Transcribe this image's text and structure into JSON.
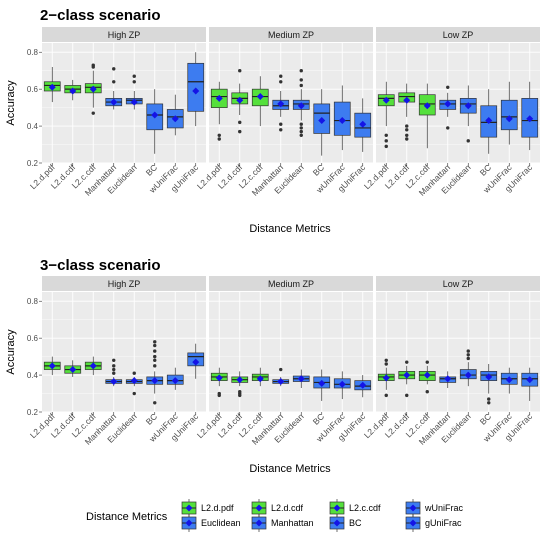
{
  "chart_data": [
    {
      "type": "box",
      "title": "2−class scenario",
      "facets": [
        "High ZP",
        "Medium ZP",
        "Low ZP"
      ],
      "xlabel": "Distance Metrics",
      "ylabel": "Accuracy",
      "ylim": [
        0.2,
        0.85
      ],
      "yticks": [
        0.2,
        0.4,
        0.6,
        0.8
      ],
      "categories": [
        "L2.d.pdf",
        "L2.d.cdf",
        "L2.c.cdf",
        "Manhattan",
        "Euclidean",
        "BC",
        "wUniFrac",
        "gUniFrac"
      ],
      "panels": [
        {
          "facet": "High ZP",
          "boxes": [
            {
              "min": 0.53,
              "q1": 0.59,
              "median": 0.62,
              "q3": 0.64,
              "max": 0.72,
              "mean": 0.61,
              "outliers": []
            },
            {
              "min": 0.54,
              "q1": 0.58,
              "median": 0.6,
              "q3": 0.62,
              "max": 0.65,
              "mean": 0.59,
              "outliers": []
            },
            {
              "min": 0.5,
              "q1": 0.58,
              "median": 0.61,
              "q3": 0.63,
              "max": 0.7,
              "mean": 0.6,
              "outliers": [
                0.47,
                0.72,
                0.73
              ]
            },
            {
              "min": 0.49,
              "q1": 0.51,
              "median": 0.53,
              "q3": 0.55,
              "max": 0.59,
              "mean": 0.53,
              "outliers": [
                0.64,
                0.71
              ]
            },
            {
              "min": 0.49,
              "q1": 0.52,
              "median": 0.54,
              "q3": 0.55,
              "max": 0.59,
              "mean": 0.53,
              "outliers": [
                0.64,
                0.67
              ]
            },
            {
              "min": 0.25,
              "q1": 0.38,
              "median": 0.46,
              "q3": 0.52,
              "max": 0.6,
              "mean": 0.46,
              "outliers": []
            },
            {
              "min": 0.35,
              "q1": 0.39,
              "median": 0.45,
              "q3": 0.49,
              "max": 0.57,
              "mean": 0.44,
              "outliers": []
            },
            {
              "min": 0.4,
              "q1": 0.48,
              "median": 0.64,
              "q3": 0.74,
              "max": 0.8,
              "mean": 0.59,
              "outliers": []
            }
          ]
        },
        {
          "facet": "Medium ZP",
          "boxes": [
            {
              "min": 0.41,
              "q1": 0.5,
              "median": 0.56,
              "q3": 0.6,
              "max": 0.64,
              "mean": 0.55,
              "outliers": [
                0.33,
                0.35
              ]
            },
            {
              "min": 0.46,
              "q1": 0.52,
              "median": 0.55,
              "q3": 0.58,
              "max": 0.63,
              "mean": 0.54,
              "outliers": [
                0.37,
                0.42,
                0.7
              ]
            },
            {
              "min": 0.4,
              "q1": 0.51,
              "median": 0.56,
              "q3": 0.6,
              "max": 0.67,
              "mean": 0.56,
              "outliers": []
            },
            {
              "min": 0.45,
              "q1": 0.49,
              "median": 0.51,
              "q3": 0.54,
              "max": 0.59,
              "mean": 0.52,
              "outliers": [
                0.38,
                0.41,
                0.64,
                0.67
              ]
            },
            {
              "min": 0.43,
              "q1": 0.49,
              "median": 0.52,
              "q3": 0.54,
              "max": 0.6,
              "mean": 0.51,
              "outliers": [
                0.35,
                0.37,
                0.39,
                0.41,
                0.62,
                0.65,
                0.7
              ]
            },
            {
              "min": 0.24,
              "q1": 0.36,
              "median": 0.47,
              "q3": 0.52,
              "max": 0.6,
              "mean": 0.43,
              "outliers": []
            },
            {
              "min": 0.27,
              "q1": 0.35,
              "median": 0.43,
              "q3": 0.53,
              "max": 0.62,
              "mean": 0.43,
              "outliers": []
            },
            {
              "min": 0.26,
              "q1": 0.34,
              "median": 0.39,
              "q3": 0.47,
              "max": 0.55,
              "mean": 0.41,
              "outliers": []
            }
          ]
        },
        {
          "facet": "Low ZP",
          "boxes": [
            {
              "min": 0.4,
              "q1": 0.51,
              "median": 0.55,
              "q3": 0.57,
              "max": 0.64,
              "mean": 0.54,
              "outliers": [
                0.29,
                0.32,
                0.35
              ]
            },
            {
              "min": 0.45,
              "q1": 0.53,
              "median": 0.56,
              "q3": 0.58,
              "max": 0.63,
              "mean": 0.54,
              "outliers": [
                0.33,
                0.35,
                0.38,
                0.4
              ]
            },
            {
              "min": 0.28,
              "q1": 0.46,
              "median": 0.52,
              "q3": 0.57,
              "max": 0.63,
              "mean": 0.51,
              "outliers": []
            },
            {
              "min": 0.45,
              "q1": 0.49,
              "median": 0.52,
              "q3": 0.54,
              "max": 0.58,
              "mean": 0.52,
              "outliers": [
                0.39,
                0.61
              ]
            },
            {
              "min": 0.4,
              "q1": 0.47,
              "median": 0.52,
              "q3": 0.55,
              "max": 0.62,
              "mean": 0.51,
              "outliers": [
                0.32
              ]
            },
            {
              "min": 0.25,
              "q1": 0.34,
              "median": 0.42,
              "q3": 0.51,
              "max": 0.6,
              "mean": 0.43,
              "outliers": []
            },
            {
              "min": 0.3,
              "q1": 0.38,
              "median": 0.45,
              "q3": 0.54,
              "max": 0.64,
              "mean": 0.44,
              "outliers": []
            },
            {
              "min": 0.27,
              "q1": 0.34,
              "median": 0.43,
              "q3": 0.55,
              "max": 0.64,
              "mean": 0.44,
              "outliers": []
            }
          ]
        }
      ]
    },
    {
      "type": "box",
      "title": "3−class scenario",
      "facets": [
        "High ZP",
        "Medium ZP",
        "Low ZP"
      ],
      "xlabel": "Distance Metrics",
      "ylabel": "Accuracy",
      "ylim": [
        0.2,
        0.85
      ],
      "yticks": [
        0.2,
        0.4,
        0.6,
        0.8
      ],
      "categories": [
        "L2.d.pdf",
        "L2.d.cdf",
        "L2.c.cdf",
        "Manhattan",
        "Euclidean",
        "BC",
        "wUniFrac",
        "gUniFrac"
      ],
      "panels": [
        {
          "facet": "High ZP",
          "boxes": [
            {
              "min": 0.4,
              "q1": 0.43,
              "median": 0.45,
              "q3": 0.47,
              "max": 0.5,
              "mean": 0.45,
              "outliers": []
            },
            {
              "min": 0.39,
              "q1": 0.41,
              "median": 0.43,
              "q3": 0.45,
              "max": 0.48,
              "mean": 0.43,
              "outliers": []
            },
            {
              "min": 0.4,
              "q1": 0.43,
              "median": 0.45,
              "q3": 0.47,
              "max": 0.5,
              "mean": 0.45,
              "outliers": []
            },
            {
              "min": 0.34,
              "q1": 0.355,
              "median": 0.365,
              "q3": 0.375,
              "max": 0.39,
              "mean": 0.365,
              "outliers": [
                0.41,
                0.43,
                0.45,
                0.48
              ]
            },
            {
              "min": 0.34,
              "q1": 0.355,
              "median": 0.365,
              "q3": 0.375,
              "max": 0.39,
              "mean": 0.37,
              "outliers": [
                0.3,
                0.41
              ]
            },
            {
              "min": 0.3,
              "q1": 0.35,
              "median": 0.37,
              "q3": 0.39,
              "max": 0.42,
              "mean": 0.37,
              "outliers": [
                0.25,
                0.45,
                0.48,
                0.5,
                0.53,
                0.56,
                0.58
              ]
            },
            {
              "min": 0.32,
              "q1": 0.35,
              "median": 0.37,
              "q3": 0.4,
              "max": 0.44,
              "mean": 0.37,
              "outliers": []
            },
            {
              "min": 0.38,
              "q1": 0.45,
              "median": 0.5,
              "q3": 0.52,
              "max": 0.57,
              "mean": 0.47,
              "outliers": []
            }
          ]
        },
        {
          "facet": "Medium ZP",
          "boxes": [
            {
              "min": 0.34,
              "q1": 0.37,
              "median": 0.39,
              "q3": 0.41,
              "max": 0.44,
              "mean": 0.385,
              "outliers": [
                0.29,
                0.3
              ]
            },
            {
              "min": 0.34,
              "q1": 0.36,
              "median": 0.375,
              "q3": 0.39,
              "max": 0.42,
              "mean": 0.375,
              "outliers": [
                0.29,
                0.3,
                0.31
              ]
            },
            {
              "min": 0.34,
              "q1": 0.37,
              "median": 0.39,
              "q3": 0.405,
              "max": 0.44,
              "mean": 0.38,
              "outliers": []
            },
            {
              "min": 0.34,
              "q1": 0.355,
              "median": 0.365,
              "q3": 0.375,
              "max": 0.39,
              "mean": 0.365,
              "outliers": [
                0.43
              ]
            },
            {
              "min": 0.33,
              "q1": 0.365,
              "median": 0.38,
              "q3": 0.395,
              "max": 0.43,
              "mean": 0.38,
              "outliers": []
            },
            {
              "min": 0.26,
              "q1": 0.33,
              "median": 0.36,
              "q3": 0.39,
              "max": 0.43,
              "mean": 0.355,
              "outliers": []
            },
            {
              "min": 0.27,
              "q1": 0.33,
              "median": 0.35,
              "q3": 0.38,
              "max": 0.42,
              "mean": 0.35,
              "outliers": []
            },
            {
              "min": 0.28,
              "q1": 0.32,
              "median": 0.34,
              "q3": 0.37,
              "max": 0.4,
              "mean": 0.345,
              "outliers": []
            }
          ]
        },
        {
          "facet": "Low ZP",
          "boxes": [
            {
              "min": 0.32,
              "q1": 0.37,
              "median": 0.39,
              "q3": 0.405,
              "max": 0.44,
              "mean": 0.385,
              "outliers": [
                0.29,
                0.46,
                0.48
              ]
            },
            {
              "min": 0.35,
              "q1": 0.38,
              "median": 0.4,
              "q3": 0.42,
              "max": 0.45,
              "mean": 0.4,
              "outliers": [
                0.29,
                0.47
              ]
            },
            {
              "min": 0.35,
              "q1": 0.37,
              "median": 0.4,
              "q3": 0.42,
              "max": 0.45,
              "mean": 0.4,
              "outliers": [
                0.31,
                0.47
              ]
            },
            {
              "min": 0.33,
              "q1": 0.36,
              "median": 0.38,
              "q3": 0.39,
              "max": 0.42,
              "mean": 0.38,
              "outliers": []
            },
            {
              "min": 0.34,
              "q1": 0.38,
              "median": 0.4,
              "q3": 0.43,
              "max": 0.47,
              "mean": 0.4,
              "outliers": [
                0.49,
                0.51,
                0.53
              ]
            },
            {
              "min": 0.3,
              "q1": 0.37,
              "median": 0.4,
              "q3": 0.42,
              "max": 0.46,
              "mean": 0.39,
              "outliers": [
                0.25,
                0.27
              ]
            },
            {
              "min": 0.3,
              "q1": 0.35,
              "median": 0.38,
              "q3": 0.41,
              "max": 0.44,
              "mean": 0.375,
              "outliers": []
            },
            {
              "min": 0.26,
              "q1": 0.34,
              "median": 0.38,
              "q3": 0.41,
              "max": 0.44,
              "mean": 0.375,
              "outliers": []
            }
          ]
        }
      ]
    }
  ],
  "legend": {
    "title": "Distance Metrics",
    "placement": "bottom",
    "items": [
      "L2.d.pdf",
      "L2.d.cdf",
      "L2.c.cdf",
      "wUniFrac",
      "Euclidean",
      "Manhattan",
      "BC",
      "gUniFrac"
    ]
  },
  "colors": {
    "L2.d.pdf": "#55e03c",
    "L2.d.cdf": "#55e03c",
    "L2.c.cdf": "#55e03c",
    "Manhattan": "#3d7cf0",
    "Euclidean": "#3d7cf0",
    "BC": "#3d7cf0",
    "wUniFrac": "#3d7cf0",
    "gUniFrac": "#3d7cf0",
    "mean_marker": "#1414e6",
    "panel_bg": "#ebebeb",
    "strip_bg": "#d9d9d9",
    "grid": "#ffffff"
  }
}
